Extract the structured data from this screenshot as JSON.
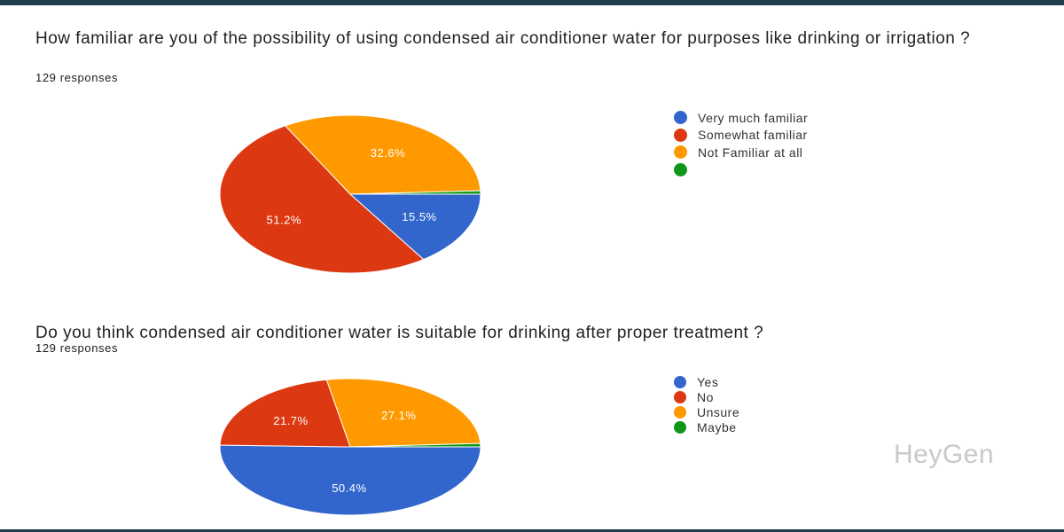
{
  "chart_data": [
    {
      "type": "pie",
      "title": "How familiar are you of the possibility of using condensed air conditioner water for purposes like drinking or irrigation ?",
      "subtitle": "129 responses",
      "legend_position": "right",
      "categories": [
        "Very much familiar",
        "Somewhat familiar",
        "Not Familiar at all",
        ""
      ],
      "values": [
        15.5,
        51.2,
        32.6,
        0.7
      ],
      "labels": [
        "15.5%",
        "51.2%",
        "32.6%",
        ""
      ],
      "colors": [
        "#3366cc",
        "#dc3912",
        "#ff9900",
        "#109618"
      ]
    },
    {
      "type": "pie",
      "title": "Do you think condensed air conditioner water is suitable for drinking after proper treatment ?",
      "subtitle": "129 responses",
      "legend_position": "right",
      "categories": [
        "Yes",
        "No",
        "Unsure",
        "Maybe"
      ],
      "values": [
        50.4,
        21.7,
        27.1,
        0.8
      ],
      "labels": [
        "50.4%",
        "21.7%",
        "27.1%",
        ""
      ],
      "colors": [
        "#3366cc",
        "#dc3912",
        "#ff9900",
        "#109618"
      ]
    }
  ],
  "watermark": "HeyGen"
}
